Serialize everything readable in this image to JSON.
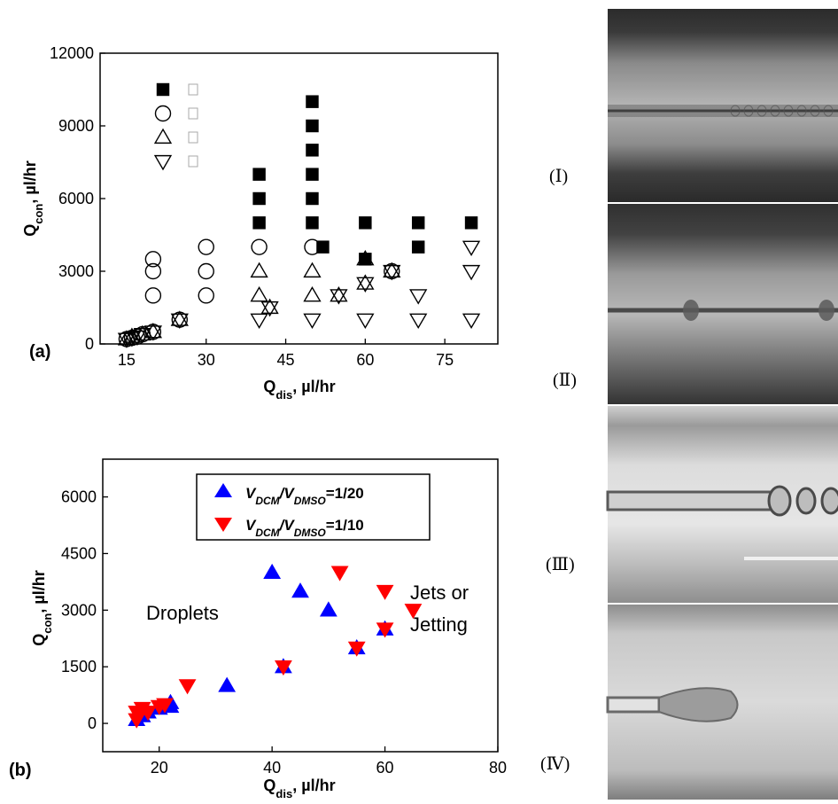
{
  "panel_a": {
    "label": "(a)",
    "legend_markers": [
      "filled-square",
      "open-circle",
      "open-triangle-up",
      "open-triangle-down"
    ],
    "chart_data": {
      "type": "scatter",
      "title": "",
      "xlabel": "Q_dis, µl/hr",
      "ylabel": "Q_con, µl/hr",
      "xlim": [
        10,
        85
      ],
      "ylim": [
        0,
        12000
      ],
      "xticks": [
        15,
        30,
        45,
        60,
        75
      ],
      "yticks": [
        0,
        3000,
        6000,
        9000,
        12000
      ],
      "grid": false,
      "legend": "top-left",
      "series": [
        {
          "marker": "filled-square",
          "points": [
            [
              40,
              5000
            ],
            [
              40,
              6000
            ],
            [
              40,
              7000
            ],
            [
              50,
              5000
            ],
            [
              50,
              6000
            ],
            [
              50,
              7000
            ],
            [
              50,
              8000
            ],
            [
              50,
              9000
            ],
            [
              50,
              10000
            ],
            [
              52,
              4000
            ],
            [
              60,
              5000
            ],
            [
              60,
              3500
            ],
            [
              70,
              5000
            ],
            [
              70,
              4000
            ],
            [
              80,
              5000
            ]
          ]
        },
        {
          "marker": "open-circle",
          "points": [
            [
              20,
              2000
            ],
            [
              20,
              3000
            ],
            [
              20,
              3500
            ],
            [
              30,
              2000
            ],
            [
              30,
              3000
            ],
            [
              30,
              4000
            ],
            [
              40,
              4000
            ],
            [
              50,
              4000
            ],
            [
              25,
              1000
            ],
            [
              65,
              3000
            ],
            [
              15,
              200
            ],
            [
              16,
              250
            ],
            [
              17,
              300
            ],
            [
              18,
              400
            ],
            [
              20,
              500
            ]
          ]
        },
        {
          "marker": "open-triangle-up",
          "points": [
            [
              40,
              2000
            ],
            [
              40,
              3000
            ],
            [
              50,
              2000
            ],
            [
              50,
              3000
            ],
            [
              42,
              1500
            ],
            [
              55,
              2000
            ],
            [
              60,
              2500
            ],
            [
              60,
              3500
            ],
            [
              65,
              3000
            ],
            [
              15,
              200
            ],
            [
              16,
              300
            ],
            [
              18,
              400
            ],
            [
              20,
              500
            ],
            [
              25,
              1000
            ]
          ]
        },
        {
          "marker": "open-triangle-down",
          "points": [
            [
              40,
              1000
            ],
            [
              50,
              1000
            ],
            [
              60,
              1000
            ],
            [
              70,
              1000
            ],
            [
              80,
              1000
            ],
            [
              70,
              2000
            ],
            [
              80,
              3000
            ],
            [
              80,
              4000
            ],
            [
              42,
              1500
            ],
            [
              55,
              2000
            ],
            [
              60,
              2500
            ],
            [
              65,
              3000
            ],
            [
              15,
              200
            ],
            [
              16,
              250
            ],
            [
              17,
              300
            ],
            [
              18,
              400
            ],
            [
              20,
              500
            ],
            [
              25,
              1000
            ]
          ]
        }
      ]
    }
  },
  "panel_b": {
    "label": "(b)",
    "annotations": {
      "left": "Droplets",
      "right_line1": "Jets or",
      "right_line2": "Jetting"
    },
    "chart_data": {
      "type": "scatter",
      "title": "",
      "xlabel": "Q_dis, µl/hr",
      "ylabel": "Q_con, µl/hr",
      "xlim": [
        10,
        80
      ],
      "ylim": [
        -750,
        7000
      ],
      "xticks": [
        20,
        40,
        60,
        80
      ],
      "yticks": [
        0,
        1500,
        3000,
        4500,
        6000
      ],
      "grid": false,
      "legend": "top-center",
      "series": [
        {
          "name": "V_DCM/V_DMSO=1/20",
          "color": "#0000ff",
          "marker": "triangle-up",
          "points": [
            [
              16,
              100
            ],
            [
              17,
              200
            ],
            [
              18,
              300
            ],
            [
              20,
              400
            ],
            [
              22,
              450
            ],
            [
              22,
              550
            ],
            [
              32,
              1000
            ],
            [
              40,
              4000
            ],
            [
              42,
              1500
            ],
            [
              45,
              3500
            ],
            [
              50,
              3000
            ],
            [
              55,
              2000
            ],
            [
              60,
              2500
            ]
          ]
        },
        {
          "name": "V_DCM/V_DMSO=1/10",
          "color": "#ff0000",
          "marker": "triangle-down",
          "points": [
            [
              16,
              100
            ],
            [
              16,
              300
            ],
            [
              17,
              400
            ],
            [
              18,
              300
            ],
            [
              20,
              450
            ],
            [
              21,
              500
            ],
            [
              25,
              1000
            ],
            [
              42,
              1500
            ],
            [
              52,
              4000
            ],
            [
              55,
              2000
            ],
            [
              60,
              2500
            ],
            [
              60,
              3500
            ],
            [
              65,
              3000
            ]
          ]
        }
      ]
    }
  },
  "legend_b": [
    {
      "sym": "V",
      "sub1": "DCM",
      "mid": "/V",
      "sub2": "DMSO",
      "ratio": "=1/20"
    },
    {
      "sym": "V",
      "sub1": "DCM",
      "mid": "/V",
      "sub2": "DMSO",
      "ratio": "=1/10"
    }
  ],
  "axis_titles": {
    "q": "Q",
    "con": "con",
    "dis": "dis",
    "unit": ", µl/hr"
  },
  "images": [
    {
      "label": "(Ⅰ)"
    },
    {
      "label": "(Ⅱ)"
    },
    {
      "label": "(Ⅲ)"
    },
    {
      "label": "(Ⅳ)"
    }
  ]
}
